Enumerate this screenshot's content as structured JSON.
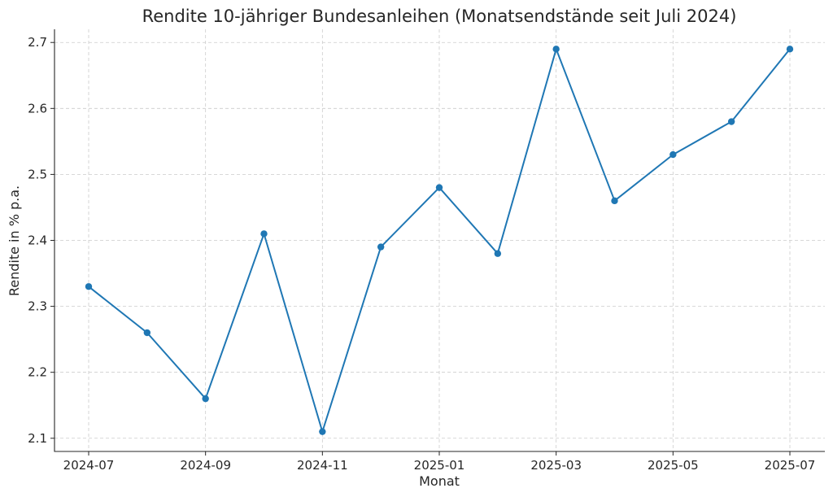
{
  "chart_data": {
    "type": "line",
    "title": "Rendite 10-jähriger Bundesanleihen (Monatsendstände seit Juli 2024)",
    "xlabel": "Monat",
    "ylabel": "Rendite in % p.a.",
    "x": [
      "2024-07",
      "2024-08",
      "2024-09",
      "2024-10",
      "2024-11",
      "2024-12",
      "2025-01",
      "2025-02",
      "2025-03",
      "2025-04",
      "2025-05",
      "2025-06",
      "2025-07"
    ],
    "x_tick_labels": [
      "2024-07",
      "2024-09",
      "2024-11",
      "2025-01",
      "2025-03",
      "2025-05",
      "2025-07"
    ],
    "y_ticks": [
      2.1,
      2.2,
      2.3,
      2.4,
      2.5,
      2.6,
      2.7
    ],
    "y_tick_labels": [
      "2.1",
      "2.2",
      "2.3",
      "2.4",
      "2.5",
      "2.6",
      "2.7"
    ],
    "ylim": [
      2.08,
      2.72
    ],
    "grid": true,
    "series": [
      {
        "values": [
          2.33,
          2.26,
          2.16,
          2.41,
          2.11,
          2.39,
          2.48,
          2.38,
          2.69,
          2.46,
          2.53,
          2.58,
          2.69
        ],
        "color": "#1f77b4",
        "marker": "circle"
      }
    ]
  }
}
